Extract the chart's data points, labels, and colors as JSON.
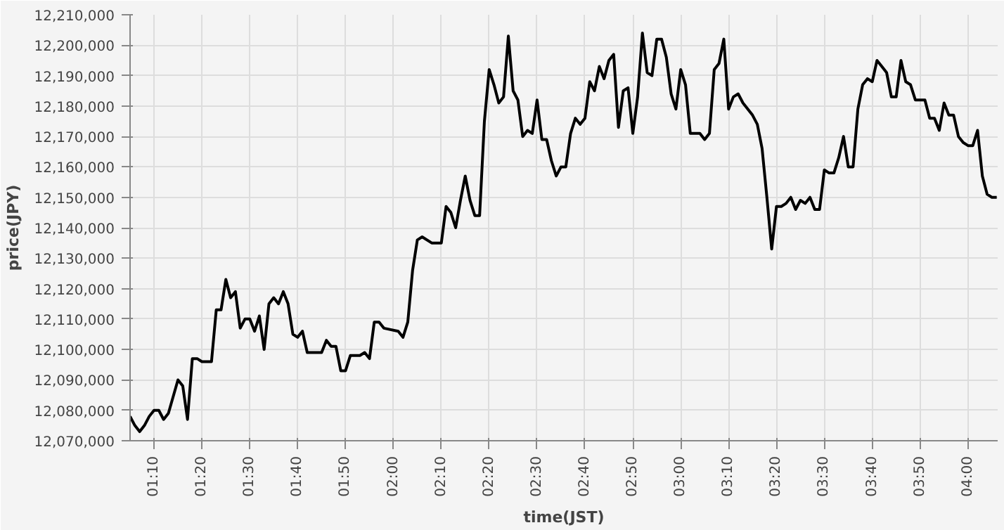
{
  "chart_data": {
    "type": "line",
    "xlabel": "time(JST)",
    "ylabel": "price(JPY)",
    "color": "#000000",
    "grid": true,
    "xlim": [
      1.0833,
      4.1033
    ],
    "ylim": [
      12070000,
      12210000
    ],
    "xticks": [
      {
        "value": 1.1667,
        "label": "01:10"
      },
      {
        "value": 1.3333,
        "label": "01:20"
      },
      {
        "value": 1.5,
        "label": "01:30"
      },
      {
        "value": 1.6667,
        "label": "01:40"
      },
      {
        "value": 1.8333,
        "label": "01:50"
      },
      {
        "value": 2.0,
        "label": "02:00"
      },
      {
        "value": 2.1667,
        "label": "02:10"
      },
      {
        "value": 2.3333,
        "label": "02:20"
      },
      {
        "value": 2.5,
        "label": "02:30"
      },
      {
        "value": 2.6667,
        "label": "02:40"
      },
      {
        "value": 2.8333,
        "label": "02:50"
      },
      {
        "value": 3.0,
        "label": "03:00"
      },
      {
        "value": 3.1667,
        "label": "03:10"
      },
      {
        "value": 3.3333,
        "label": "03:20"
      },
      {
        "value": 3.5,
        "label": "03:30"
      },
      {
        "value": 3.6667,
        "label": "03:40"
      },
      {
        "value": 3.8333,
        "label": "03:50"
      },
      {
        "value": 4.0,
        "label": "04:00"
      }
    ],
    "yticks": [
      {
        "value": 12070000,
        "label": "12,070,000"
      },
      {
        "value": 12080000,
        "label": "12,080,000"
      },
      {
        "value": 12090000,
        "label": "12,090,000"
      },
      {
        "value": 12100000,
        "label": "12,100,000"
      },
      {
        "value": 12110000,
        "label": "12,110,000"
      },
      {
        "value": 12120000,
        "label": "12,120,000"
      },
      {
        "value": 12130000,
        "label": "12,130,000"
      },
      {
        "value": 12140000,
        "label": "12,140,000"
      },
      {
        "value": 12150000,
        "label": "12,150,000"
      },
      {
        "value": 12160000,
        "label": "12,160,000"
      },
      {
        "value": 12170000,
        "label": "12,170,000"
      },
      {
        "value": 12180000,
        "label": "12,180,000"
      },
      {
        "value": 12190000,
        "label": "12,190,000"
      },
      {
        "value": 12200000,
        "label": "12,200,000"
      },
      {
        "value": 12210000,
        "label": "12,210,000"
      }
    ],
    "x": [
      1.0833,
      1.1,
      1.1167,
      1.1333,
      1.15,
      1.1667,
      1.1833,
      1.2,
      1.2167,
      1.25,
      1.2667,
      1.2833,
      1.3,
      1.3167,
      1.3333,
      1.3667,
      1.3833,
      1.4,
      1.4167,
      1.4333,
      1.45,
      1.4667,
      1.4833,
      1.5,
      1.5167,
      1.5333,
      1.55,
      1.5667,
      1.5833,
      1.6,
      1.6167,
      1.6333,
      1.65,
      1.6667,
      1.6833,
      1.7,
      1.75,
      1.7667,
      1.7833,
      1.8,
      1.8167,
      1.8333,
      1.85,
      1.8833,
      1.9,
      1.9167,
      1.9333,
      1.95,
      1.9667,
      2.0167,
      2.0333,
      2.05,
      2.0667,
      2.0833,
      2.1,
      2.1333,
      2.1667,
      2.1833,
      2.2,
      2.2167,
      2.2333,
      2.25,
      2.2667,
      2.2833,
      2.3,
      2.3167,
      2.3333,
      2.35,
      2.3667,
      2.3833,
      2.4,
      2.4167,
      2.4333,
      2.45,
      2.4667,
      2.4833,
      2.5,
      2.5167,
      2.5333,
      2.55,
      2.5667,
      2.5833,
      2.6,
      2.6167,
      2.6333,
      2.65,
      2.6667,
      2.6833,
      2.7,
      2.7167,
      2.7333,
      2.75,
      2.7667,
      2.7833,
      2.8,
      2.8167,
      2.8333,
      2.85,
      2.8667,
      2.8833,
      2.9,
      2.9167,
      2.9333,
      2.95,
      2.9667,
      2.9833,
      3.0,
      3.0167,
      3.0333,
      3.0667,
      3.0833,
      3.1,
      3.1167,
      3.1333,
      3.15,
      3.1667,
      3.1833,
      3.2,
      3.2167,
      3.25,
      3.2667,
      3.2833,
      3.3,
      3.3167,
      3.3333,
      3.35,
      3.3667,
      3.3833,
      3.4,
      3.4167,
      3.4333,
      3.45,
      3.4667,
      3.4833,
      3.5,
      3.5167,
      3.5333,
      3.55,
      3.5667,
      3.5833,
      3.6,
      3.6167,
      3.6333,
      3.65,
      3.6667,
      3.6833,
      3.7,
      3.7167,
      3.7333,
      3.75,
      3.7667,
      3.7833,
      3.8,
      3.8167,
      3.8333,
      3.85,
      3.8667,
      3.8833,
      3.9,
      3.9167,
      3.9333,
      3.95,
      3.9667,
      3.9833,
      4.0,
      4.0167,
      4.0333,
      4.05,
      4.0667,
      4.0833,
      4.1
    ],
    "values": [
      12078000,
      12075000,
      12073000,
      12075000,
      12078000,
      12080000,
      12080000,
      12077000,
      12079000,
      12090000,
      12088000,
      12077000,
      12097000,
      12097000,
      12096000,
      12096000,
      12113000,
      12113000,
      12123000,
      12117000,
      12119000,
      12107000,
      12110000,
      12110000,
      12106000,
      12111000,
      12100000,
      12115000,
      12117000,
      12115000,
      12119000,
      12115000,
      12105000,
      12104000,
      12106000,
      12099000,
      12099000,
      12103000,
      12101000,
      12101000,
      12093000,
      12093000,
      12098000,
      12098000,
      12099000,
      12097000,
      12109000,
      12109000,
      12107000,
      12106000,
      12104000,
      12109000,
      12126000,
      12136000,
      12137000,
      12135000,
      12135000,
      12147000,
      12145000,
      12140000,
      12149000,
      12157000,
      12149000,
      12144000,
      12144000,
      12175000,
      12192000,
      12187000,
      12181000,
      12183000,
      12203000,
      12185000,
      12182000,
      12170000,
      12172000,
      12171000,
      12182000,
      12169000,
      12169000,
      12162000,
      12157000,
      12160000,
      12160000,
      12171000,
      12176000,
      12174000,
      12176000,
      12188000,
      12185000,
      12193000,
      12189000,
      12195000,
      12197000,
      12173000,
      12185000,
      12186000,
      12171000,
      12183000,
      12204000,
      12191000,
      12190000,
      12202000,
      12202000,
      12196000,
      12184000,
      12179000,
      12192000,
      12187000,
      12171000,
      12171000,
      12169000,
      12171000,
      12192000,
      12194000,
      12202000,
      12179000,
      12183000,
      12184000,
      12181000,
      12177000,
      12174000,
      12166000,
      12150000,
      12133000,
      12147000,
      12147000,
      12148000,
      12150000,
      12146000,
      12149000,
      12148000,
      12150000,
      12146000,
      12146000,
      12159000,
      12158000,
      12158000,
      12163000,
      12170000,
      12160000,
      12160000,
      12179000,
      12187000,
      12189000,
      12188000,
      12195000,
      12193000,
      12191000,
      12183000,
      12183000,
      12195000,
      12188000,
      12187000,
      12182000,
      12182000,
      12182000,
      12176000,
      12176000,
      12172000,
      12181000,
      12177000,
      12177000,
      12170000,
      12168000,
      12167000,
      12167000,
      12172000,
      12157000,
      12151000,
      12150000,
      12150000
    ]
  }
}
